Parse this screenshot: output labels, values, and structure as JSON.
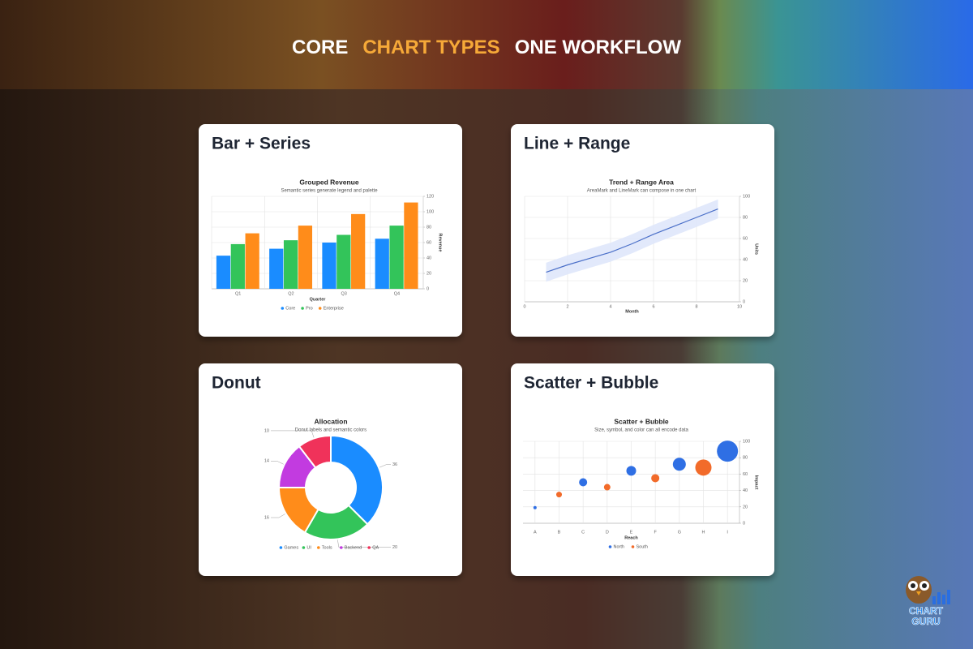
{
  "header": {
    "parts": [
      "CORE",
      "CHART TYPES",
      "ONE WORKFLOW"
    ]
  },
  "cards": [
    "Bar + Series",
    "Line + Range",
    "Donut",
    "Scatter + Bubble"
  ],
  "logo": [
    "CHART",
    "GURU"
  ],
  "chart_data": [
    {
      "type": "bar",
      "title": "Grouped Revenue",
      "subtitle": "Semantic series generate legend and palette",
      "x_label": "Quarter",
      "y_label": "Revenue",
      "categories": [
        "Q1",
        "Q2",
        "Q3",
        "Q4"
      ],
      "series": [
        {
          "name": "Core",
          "color": "#1a8cff",
          "values": [
            43,
            52,
            60,
            65
          ]
        },
        {
          "name": "Pro",
          "color": "#33c45a",
          "values": [
            58,
            63,
            70,
            82
          ]
        },
        {
          "name": "Enterprise",
          "color": "#ff8c1a",
          "values": [
            72,
            82,
            97,
            112
          ]
        }
      ],
      "ylim": [
        0,
        120
      ],
      "yticks": [
        0,
        20,
        40,
        60,
        80,
        100,
        120
      ],
      "grid": true,
      "legend": "bottom"
    },
    {
      "type": "line",
      "title": "Trend + Range Area",
      "subtitle": "AreaMark and LineMark can compose in one chart",
      "x_label": "Month",
      "y_label": "Units",
      "x": [
        1,
        2,
        3,
        4,
        5,
        6,
        7,
        8,
        9
      ],
      "values": [
        28,
        35,
        41,
        47,
        55,
        64,
        72,
        80,
        88
      ],
      "lower": [
        19,
        26,
        32,
        38,
        46,
        55,
        63,
        71,
        79
      ],
      "upper": [
        37,
        44,
        50,
        56,
        64,
        73,
        81,
        89,
        97
      ],
      "color": "#4a6fc8",
      "band_color": "#dde5fa",
      "xlim": [
        0,
        10
      ],
      "xticks": [
        0,
        2,
        4,
        6,
        8,
        10
      ],
      "ylim": [
        0,
        100
      ],
      "yticks": [
        0,
        20,
        40,
        60,
        80,
        100
      ],
      "grid": true
    },
    {
      "type": "donut",
      "title": "Allocation",
      "subtitle": "Donut labels and semantic colors",
      "categories": [
        "Games",
        "UI",
        "Tools",
        "Backend",
        "QA"
      ],
      "values": [
        36,
        20,
        16,
        14,
        10
      ],
      "colors": [
        "#1a8cff",
        "#33c45a",
        "#ff8c1a",
        "#c23be0",
        "#f0325a"
      ],
      "legend": "bottom"
    },
    {
      "type": "scatter",
      "title": "Scatter + Bubble",
      "subtitle": "Size, symbol, and color can all encode data",
      "x_label": "Reach",
      "y_label": "Impact",
      "categories": [
        "A",
        "B",
        "C",
        "D",
        "E",
        "F",
        "G",
        "H",
        "I"
      ],
      "series": [
        {
          "name": "North",
          "color": "#2f6fe4",
          "values": [
            19,
            null,
            50,
            null,
            64,
            null,
            72,
            null,
            88
          ],
          "sizes": [
            4,
            null,
            10,
            null,
            12,
            null,
            16,
            null,
            26
          ]
        },
        {
          "name": "South",
          "color": "#f26b2a",
          "values": [
            null,
            35,
            null,
            44,
            null,
            55,
            null,
            68,
            null
          ],
          "sizes": [
            null,
            7,
            null,
            8,
            null,
            10,
            null,
            20,
            null
          ]
        }
      ],
      "ylim": [
        0,
        100
      ],
      "yticks": [
        0,
        20,
        40,
        60,
        80,
        100
      ],
      "grid": true,
      "legend": "bottom"
    }
  ]
}
